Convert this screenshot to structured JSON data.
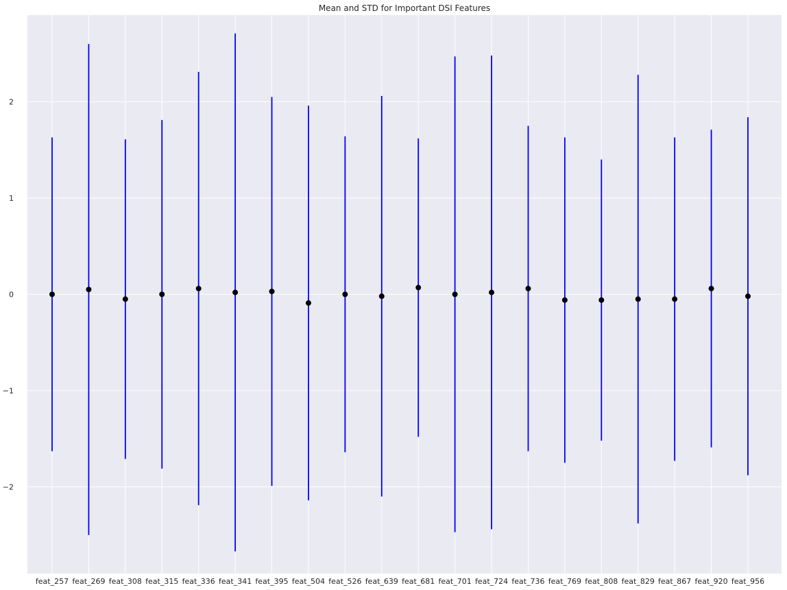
{
  "chart_data": {
    "type": "errorbar",
    "title": "Mean and STD for Important DSI Features",
    "xlabel": "",
    "ylabel": "",
    "ylim": [
      -2.9,
      2.9
    ],
    "yticks": [
      -2,
      -1,
      0,
      1,
      2
    ],
    "ytick_labels": [
      "−2",
      "−1",
      "0",
      "1",
      "2"
    ],
    "grid": true,
    "colors": {
      "background": "#eaeaf2",
      "grid": "#ffffff",
      "errorbar": "#0000ff",
      "marker": "#000000"
    },
    "categories": [
      "feat_257",
      "feat_269",
      "feat_308",
      "feat_315",
      "feat_336",
      "feat_341",
      "feat_395",
      "feat_504",
      "feat_526",
      "feat_639",
      "feat_681",
      "feat_701",
      "feat_724",
      "feat_736",
      "feat_769",
      "feat_808",
      "feat_829",
      "feat_867",
      "feat_920",
      "feat_956"
    ],
    "means": [
      0.0,
      0.05,
      -0.05,
      0.0,
      0.06,
      0.02,
      0.03,
      -0.09,
      0.0,
      -0.02,
      0.07,
      0.0,
      0.02,
      0.06,
      -0.06,
      -0.06,
      -0.05,
      -0.05,
      0.06,
      -0.02
    ],
    "stds": [
      1.63,
      2.55,
      1.66,
      1.81,
      2.25,
      2.69,
      2.02,
      2.05,
      1.64,
      2.08,
      1.55,
      2.47,
      2.46,
      1.69,
      1.69,
      1.46,
      2.33,
      1.68,
      1.65,
      1.86
    ]
  }
}
